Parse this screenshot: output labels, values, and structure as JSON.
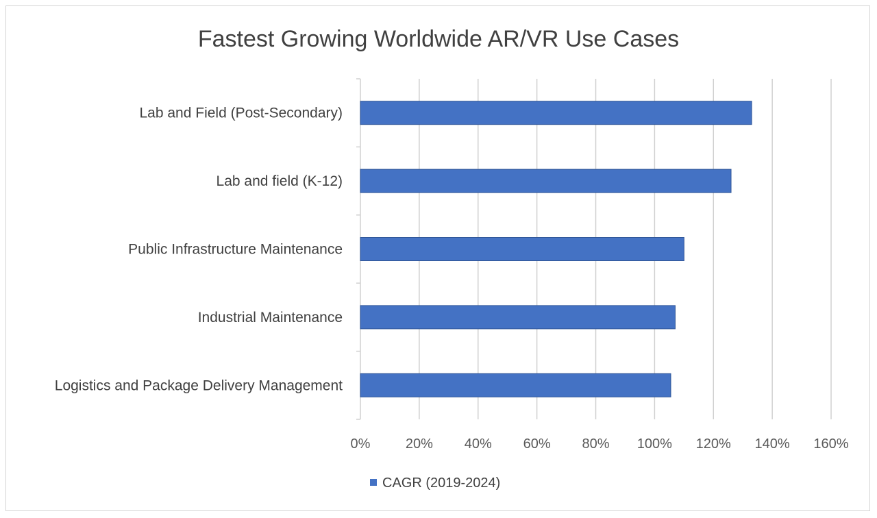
{
  "chart_data": {
    "type": "bar",
    "orientation": "horizontal",
    "title": "Fastest Growing Worldwide AR/VR Use Cases",
    "categories": [
      "Lab and Field (Post-Secondary)",
      "Lab and field (K-12)",
      "Public Infrastructure Maintenance",
      "Industrial Maintenance",
      "Logistics and Package Delivery Management"
    ],
    "series": [
      {
        "name": "CAGR (2019-2024)",
        "values": [
          133,
          126,
          110,
          107,
          105.5
        ],
        "color": "#4472c4"
      }
    ],
    "xlim": [
      0,
      160
    ],
    "xticks": [
      0,
      20,
      40,
      60,
      80,
      100,
      120,
      140,
      160
    ],
    "xtick_labels": [
      "0%",
      "20%",
      "40%",
      "60%",
      "80%",
      "100%",
      "120%",
      "140%",
      "160%"
    ],
    "xlabel": "",
    "ylabel": "",
    "grid": true,
    "legend_position": "bottom-left",
    "legend_label": "CAGR (2019-2024)"
  }
}
